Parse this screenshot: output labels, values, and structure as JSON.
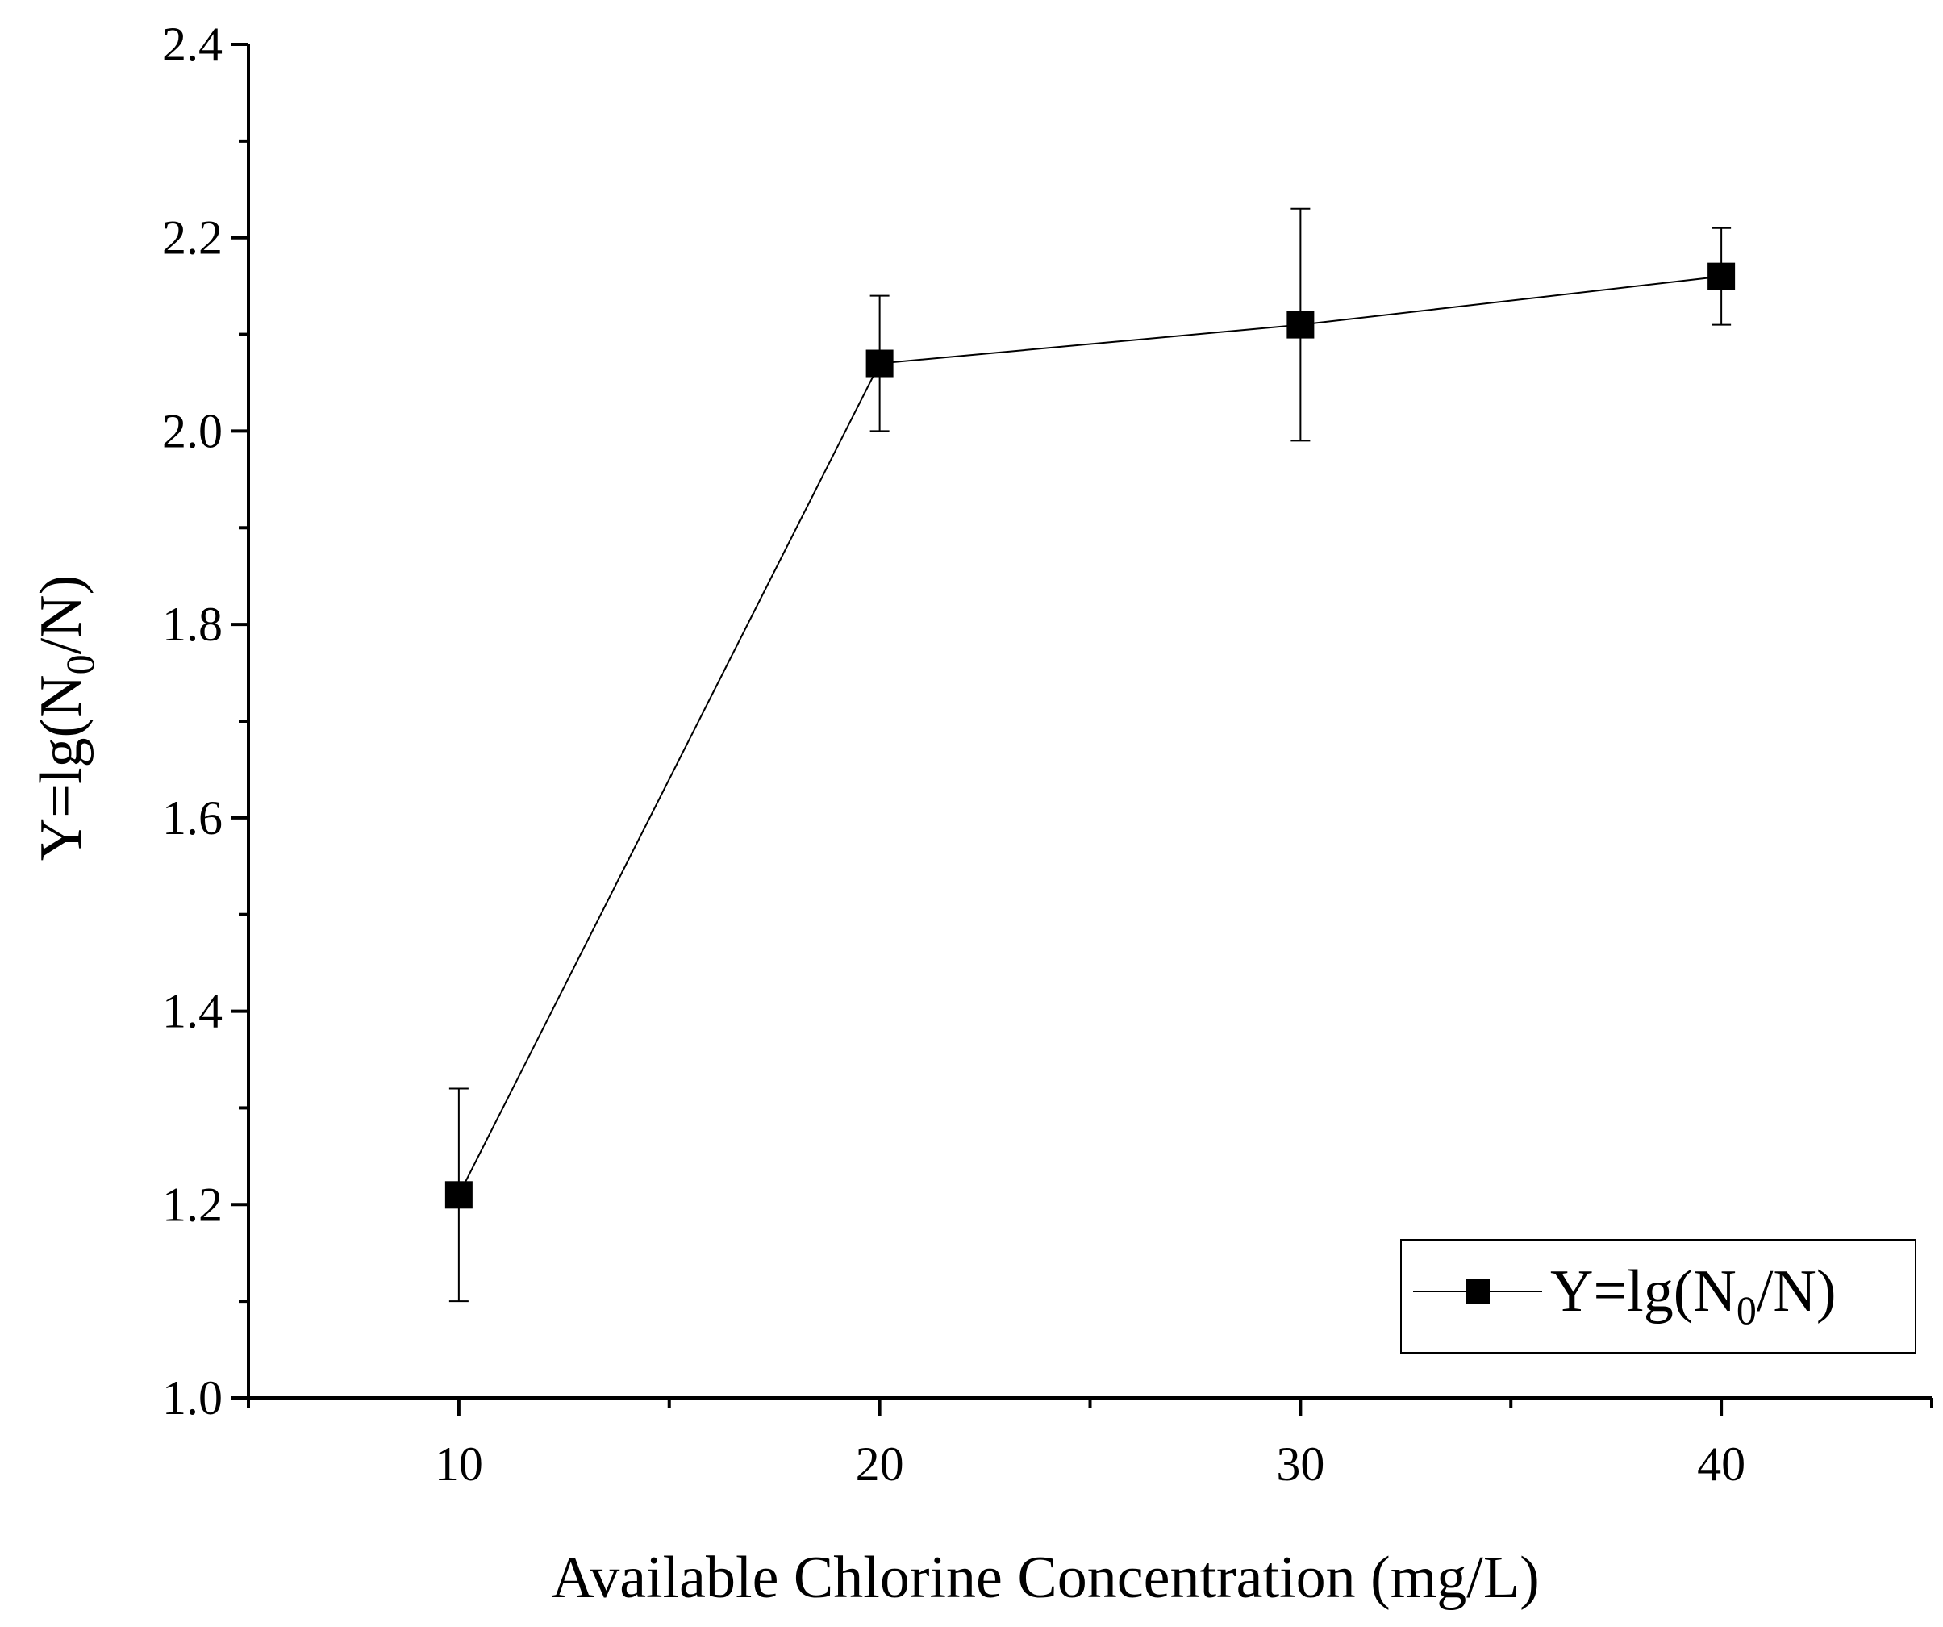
{
  "chart_data": {
    "type": "line",
    "title": "",
    "xlabel": "Available Chlorine Concentration (mg/L)",
    "ylabel": {
      "prefix": "Y=lg(N",
      "subscript": "0",
      "suffix": "/N)"
    },
    "xlim": [
      5,
      45
    ],
    "ylim": [
      1.0,
      2.4
    ],
    "x_ticks": [
      10,
      20,
      30,
      40
    ],
    "x_tick_labels": [
      "10",
      "20",
      "30",
      "40"
    ],
    "x_minor_ticks": [
      5,
      15,
      25,
      35,
      45
    ],
    "y_ticks": [
      1.0,
      1.2,
      1.4,
      1.6,
      1.8,
      2.0,
      2.2,
      2.4
    ],
    "y_tick_labels": [
      "1.0",
      "1.2",
      "1.4",
      "1.6",
      "1.8",
      "2.0",
      "2.2",
      "2.4"
    ],
    "y_minor_ticks": [
      1.1,
      1.3,
      1.5,
      1.7,
      1.9,
      2.1,
      2.3
    ],
    "grid": false,
    "series": [
      {
        "name": {
          "prefix": "Y=lg(N",
          "subscript": "0",
          "suffix": "/N)"
        },
        "marker": "square",
        "color": "#000000",
        "x": [
          10,
          20,
          30,
          40
        ],
        "y": [
          1.21,
          2.07,
          2.11,
          2.16
        ],
        "error_low": [
          1.1,
          2.0,
          1.99,
          2.11
        ],
        "error_high": [
          1.32,
          2.14,
          2.23,
          2.21
        ]
      }
    ],
    "legend": {
      "position": "bottom-right"
    }
  }
}
